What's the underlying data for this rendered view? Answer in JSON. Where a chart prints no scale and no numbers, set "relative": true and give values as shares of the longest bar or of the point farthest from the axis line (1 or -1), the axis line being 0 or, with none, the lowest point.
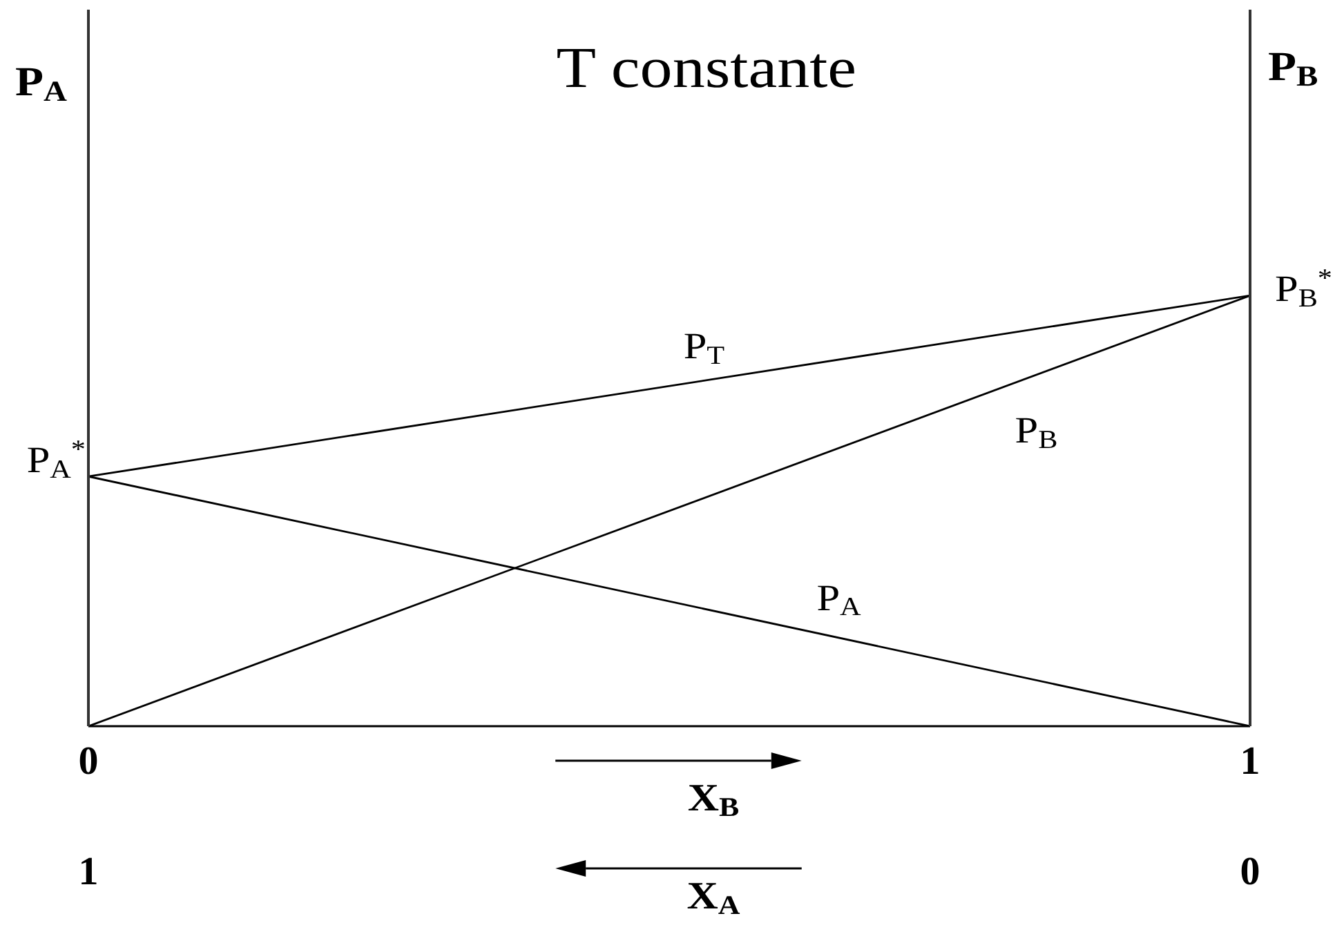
{
  "chart_data": {
    "type": "line",
    "title": "T constante",
    "xlabel": "X$_{B}$",
    "x2label": "X$_{A}$",
    "ylabel": "P$_{A}$",
    "y2label": "P$_{B}$",
    "relative": true,
    "marker": "none",
    "xlim": [
      0,
      1
    ],
    "xticks": [
      0,
      1
    ],
    "x2lim": [
      1,
      0
    ],
    "x2ticks": [
      1,
      0
    ],
    "x": [
      0,
      1
    ],
    "series": [
      {
        "name": "P$_{A}$",
        "color": "#000000",
        "values": [
          0.58,
          0
        ]
      },
      {
        "name": "P$_{B}$",
        "color": "#000000",
        "values": [
          0,
          1
        ]
      },
      {
        "name": "P$_{T}$",
        "color": "#000000",
        "values": [
          0.58,
          1
        ]
      }
    ],
    "annotations": [
      {
        "text": "P$_{A}$$^{*}$",
        "x": 0,
        "y": 0.58
      },
      {
        "text": "P$_{B}$$^{*}$",
        "x": 1,
        "y": 1
      }
    ]
  }
}
